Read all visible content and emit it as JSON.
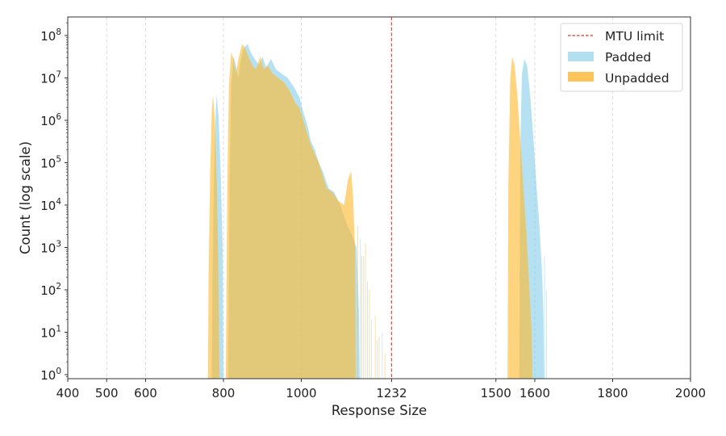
{
  "chart_data": {
    "type": "area",
    "title": "",
    "xlabel": "Response Size",
    "ylabel": "Count (log scale)",
    "xlim": [
      400,
      2000
    ],
    "ylim_log10": [
      -0.1,
      8.4
    ],
    "yscale": "log",
    "x_ticks": [
      400,
      500,
      600,
      800,
      1000,
      1232,
      1500,
      1600,
      1800,
      2000
    ],
    "y_ticks": [
      "10^0",
      "10^1",
      "10^2",
      "10^3",
      "10^4",
      "10^5",
      "10^6",
      "10^7",
      "10^8"
    ],
    "grid": {
      "x": true,
      "y": false,
      "style": "dashed"
    },
    "vline": {
      "x": 1232,
      "label": "MTU limit",
      "color": "#e8302e",
      "style": "dashed"
    },
    "legend": {
      "position": "upper right",
      "entries": [
        {
          "label": "MTU limit",
          "kind": "line",
          "color": "#e8302e"
        },
        {
          "label": "Padded",
          "kind": "patch",
          "color": "#b3dff0"
        },
        {
          "label": "Unpadded",
          "kind": "patch",
          "color": "#fdc45a"
        }
      ]
    },
    "series": [
      {
        "name": "Padded",
        "color": "#87ceeb",
        "points_log10": [
          [
            770,
            0
          ],
          [
            772,
            2.5
          ],
          [
            776,
            4.8
          ],
          [
            780,
            6.2
          ],
          [
            783,
            6.6
          ],
          [
            788,
            6.0
          ],
          [
            793,
            4.8
          ],
          [
            798,
            3.0
          ],
          [
            800,
            0
          ],
          [
            812,
            0
          ],
          [
            816,
            4.5
          ],
          [
            820,
            6.8
          ],
          [
            826,
            7.5
          ],
          [
            832,
            7.3
          ],
          [
            838,
            7.0
          ],
          [
            845,
            7.45
          ],
          [
            852,
            7.7
          ],
          [
            862,
            7.8
          ],
          [
            870,
            7.6
          ],
          [
            880,
            7.45
          ],
          [
            892,
            7.3
          ],
          [
            900,
            7.5
          ],
          [
            910,
            7.25
          ],
          [
            922,
            7.45
          ],
          [
            935,
            7.2
          ],
          [
            950,
            7.1
          ],
          [
            965,
            7.0
          ],
          [
            980,
            6.8
          ],
          [
            995,
            6.55
          ],
          [
            1005,
            6.2
          ],
          [
            1015,
            5.9
          ],
          [
            1025,
            5.5
          ],
          [
            1035,
            5.3
          ],
          [
            1045,
            5.0
          ],
          [
            1055,
            4.8
          ],
          [
            1070,
            4.4
          ],
          [
            1085,
            4.3
          ],
          [
            1100,
            4.0
          ],
          [
            1115,
            3.6
          ],
          [
            1130,
            3.3
          ],
          [
            1142,
            3.0
          ],
          [
            1148,
            1.5
          ],
          [
            1150,
            0
          ],
          [
            1560,
            0
          ],
          [
            1563,
            5.5
          ],
          [
            1567,
            7.1
          ],
          [
            1573,
            7.45
          ],
          [
            1580,
            7.3
          ],
          [
            1588,
            6.6
          ],
          [
            1596,
            5.6
          ],
          [
            1604,
            4.5
          ],
          [
            1612,
            3.5
          ],
          [
            1618,
            2.5
          ],
          [
            1622,
            1.5
          ],
          [
            1624,
            0
          ]
        ],
        "sparse_spikes": [
          [
            1152,
            3.2
          ],
          [
            1160,
            2.8
          ],
          [
            1170,
            2.2
          ],
          [
            1180,
            1.3
          ],
          [
            1195,
            0.8
          ],
          [
            1208,
            1.0
          ],
          [
            1625,
            2.8
          ],
          [
            1630,
            2.0
          ]
        ]
      },
      {
        "name": "Unpadded",
        "color": "#fdb92e",
        "points_log10": [
          [
            760,
            0
          ],
          [
            762,
            2.5
          ],
          [
            766,
            4.8
          ],
          [
            770,
            6.2
          ],
          [
            773,
            6.6
          ],
          [
            778,
            6.0
          ],
          [
            783,
            4.5
          ],
          [
            787,
            2.5
          ],
          [
            790,
            0
          ],
          [
            806,
            0
          ],
          [
            810,
            4.5
          ],
          [
            814,
            6.8
          ],
          [
            820,
            7.6
          ],
          [
            826,
            7.45
          ],
          [
            832,
            7.1
          ],
          [
            840,
            7.5
          ],
          [
            848,
            7.8
          ],
          [
            856,
            7.7
          ],
          [
            864,
            7.5
          ],
          [
            874,
            7.3
          ],
          [
            884,
            7.2
          ],
          [
            894,
            7.5
          ],
          [
            904,
            7.2
          ],
          [
            914,
            7.3
          ],
          [
            926,
            7.1
          ],
          [
            940,
            7.0
          ],
          [
            955,
            6.9
          ],
          [
            970,
            6.7
          ],
          [
            985,
            6.4
          ],
          [
            995,
            6.3
          ],
          [
            1005,
            6.0
          ],
          [
            1015,
            5.7
          ],
          [
            1025,
            5.4
          ],
          [
            1035,
            5.2
          ],
          [
            1045,
            5.0
          ],
          [
            1055,
            4.7
          ],
          [
            1065,
            4.4
          ],
          [
            1080,
            4.3
          ],
          [
            1095,
            4.1
          ],
          [
            1110,
            4.0
          ],
          [
            1120,
            4.6
          ],
          [
            1128,
            4.8
          ],
          [
            1133,
            4.2
          ],
          [
            1138,
            3.0
          ],
          [
            1140,
            0
          ],
          [
            1530,
            0
          ],
          [
            1532,
            4.5
          ],
          [
            1537,
            7.0
          ],
          [
            1542,
            7.5
          ],
          [
            1548,
            7.3
          ],
          [
            1555,
            6.6
          ],
          [
            1562,
            5.6
          ],
          [
            1570,
            4.5
          ],
          [
            1578,
            3.4
          ],
          [
            1585,
            2.2
          ],
          [
            1592,
            1.0
          ],
          [
            1594,
            0
          ]
        ],
        "sparse_spikes": [
          [
            1145,
            3.5
          ],
          [
            1155,
            2.8
          ],
          [
            1165,
            3.1
          ],
          [
            1175,
            2.0
          ],
          [
            1190,
            1.4
          ],
          [
            1200,
            0.9
          ],
          [
            1215,
            0.5
          ]
        ]
      }
    ]
  }
}
